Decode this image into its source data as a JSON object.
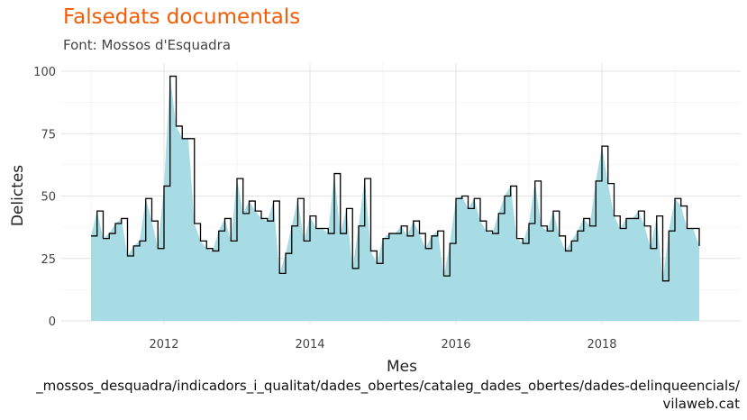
{
  "colors": {
    "title": "#f25c05",
    "area": "#a8dce4",
    "step": "#000000",
    "grid": "#e3e3e3"
  },
  "chart_data": {
    "type": "area",
    "title": "Falsedats documentals",
    "subtitle": "Font: Mossos d'Esquadra",
    "xlabel": "Mes",
    "ylabel": "Delictes",
    "caption_lines": [
      "_mossos_desquadra/indicadors_i_qualitat/dades_obertes/cataleg_dades_obertes/dades-delinqueencials/",
      "vilaweb.cat"
    ],
    "x_start": "2011-01",
    "x_ticks": [
      "2012",
      "2014",
      "2016",
      "2018"
    ],
    "y_ticks": [
      "0",
      "25",
      "50",
      "75",
      "100"
    ],
    "ylim": [
      0,
      100
    ],
    "grid": true,
    "legend": "none",
    "values": [
      34,
      44,
      33,
      35,
      39,
      41,
      26,
      30,
      32,
      49,
      40,
      29,
      54,
      98,
      78,
      73,
      73,
      39,
      32,
      29,
      28,
      36,
      41,
      32,
      57,
      43,
      48,
      44,
      41,
      40,
      48,
      19,
      27,
      38,
      49,
      32,
      42,
      37,
      37,
      35,
      59,
      35,
      45,
      21,
      38,
      57,
      28,
      23,
      33,
      35,
      35,
      38,
      34,
      40,
      35,
      29,
      34,
      36,
      18,
      31,
      49,
      50,
      45,
      49,
      40,
      36,
      35,
      43,
      50,
      54,
      33,
      31,
      39,
      56,
      38,
      36,
      44,
      34,
      28,
      32,
      36,
      41,
      38,
      56,
      70,
      55,
      42,
      37,
      41,
      41,
      44,
      38,
      29,
      42,
      16,
      36,
      49,
      46,
      37,
      37,
      30
    ]
  }
}
